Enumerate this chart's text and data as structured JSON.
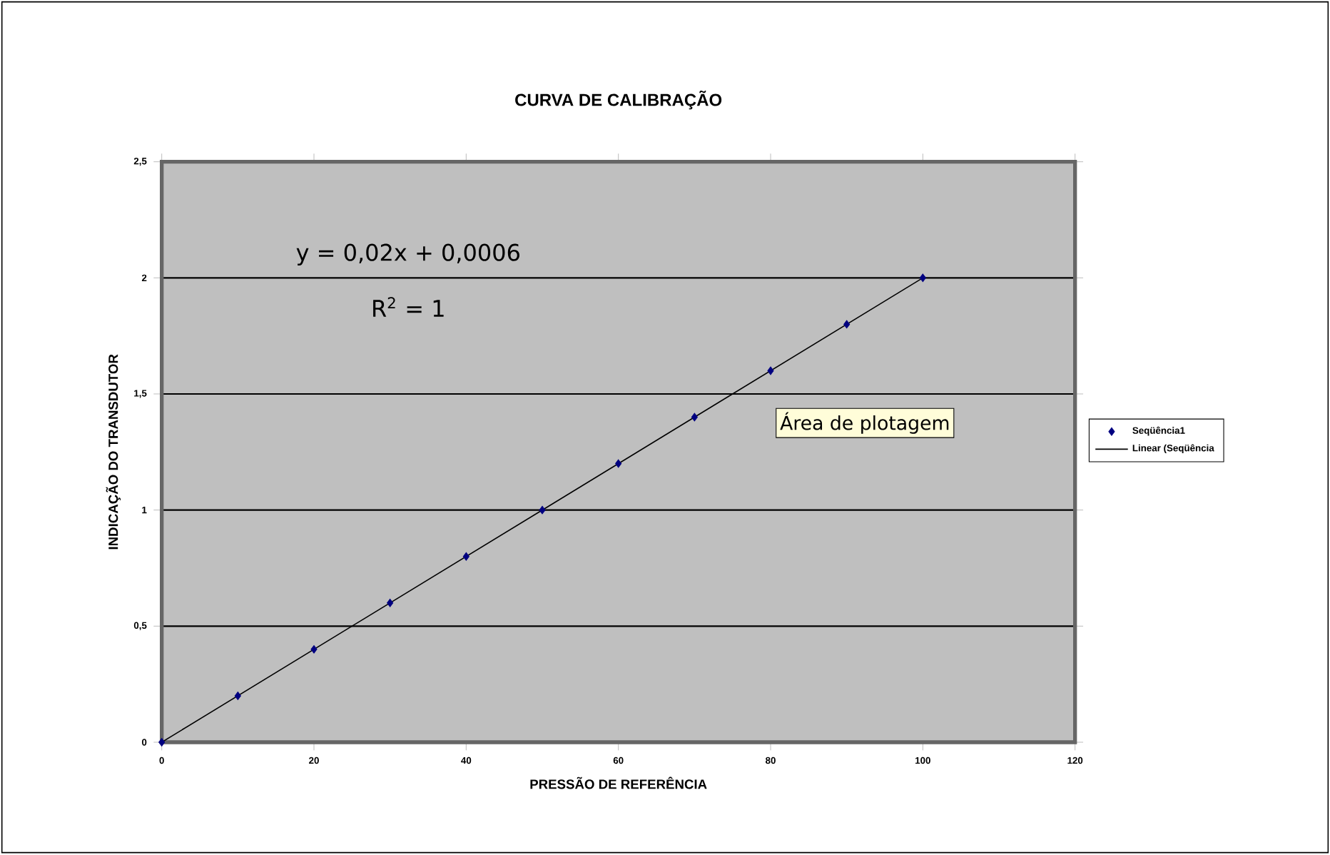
{
  "chart_data": {
    "type": "scatter",
    "title": "CURVA DE CALIBRAÇÃO",
    "xlabel": "PRESSÃO DE REFERÊNCIA",
    "ylabel": "INDICAÇÃO DO TRANSDUTOR",
    "series": [
      {
        "name": "Seqüência1",
        "color": "#000080",
        "marker": "diamond",
        "x": [
          0,
          10,
          20,
          30,
          40,
          50,
          60,
          70,
          80,
          90,
          100
        ],
        "values": [
          0,
          0.2,
          0.4,
          0.6,
          0.8,
          1,
          1.2,
          1.4,
          1.6,
          1.8,
          2
        ]
      },
      {
        "name": "Linear (Seqüência",
        "type": "line",
        "color": "#000000",
        "marker": "none",
        "line_style": "solid",
        "x": [
          0,
          100
        ],
        "values": [
          0,
          2
        ]
      }
    ],
    "xlim": [
      0,
      120
    ],
    "xticks": [
      0,
      20,
      40,
      60,
      80,
      100,
      120
    ],
    "ylim": [
      0,
      2.5
    ],
    "yticks": [
      0,
      {
        "value": 0.5,
        "label": "0,5"
      },
      1,
      {
        "value": 1.5,
        "label": "1,5"
      },
      2,
      {
        "value": 2.5,
        "label": "2,5"
      }
    ],
    "grid": "y",
    "legend": "right",
    "annotations": [
      "y = 0,02x + 0,0006",
      "R$^{2}$ = 1",
      "Área de plotagem"
    ]
  }
}
